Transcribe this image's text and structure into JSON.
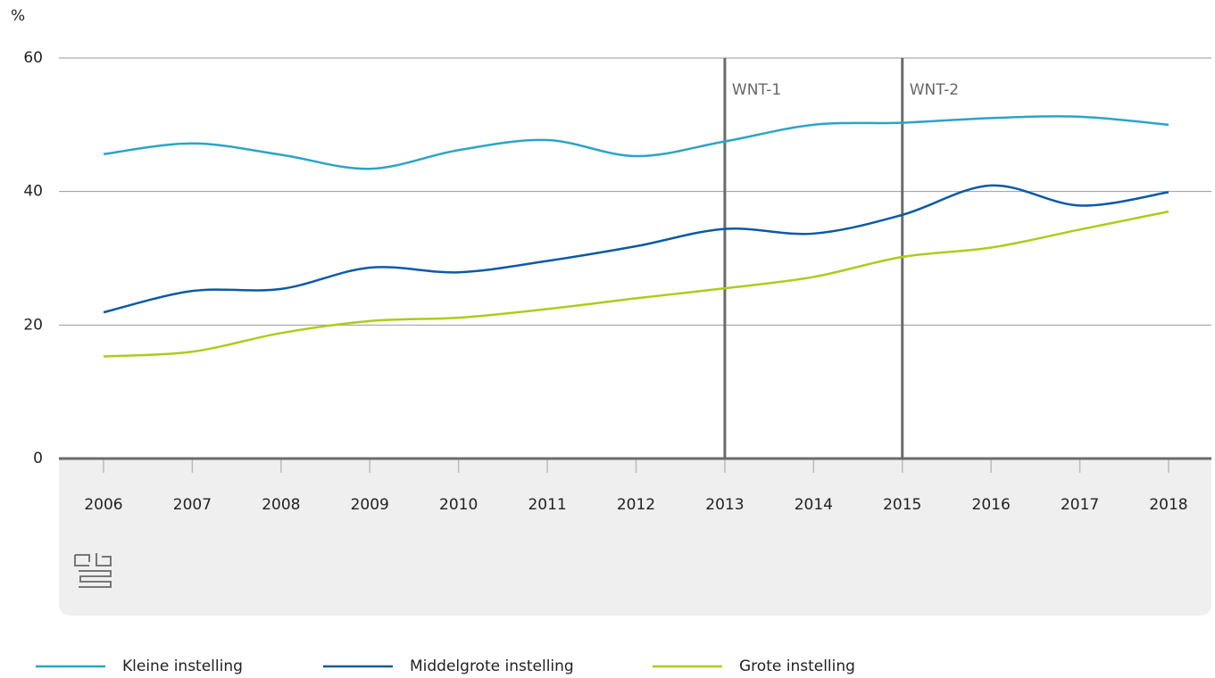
{
  "chart_data": {
    "type": "line",
    "y_label": "%",
    "categories": [
      "2006",
      "2007",
      "2008",
      "2009",
      "2010",
      "2011",
      "2012",
      "2013",
      "2014",
      "2015",
      "2016",
      "2017",
      "2018"
    ],
    "series": [
      {
        "name": "Kleine instelling",
        "color": "#2ba4c8",
        "values": [
          45.6,
          47.2,
          45.5,
          43.4,
          46.2,
          47.7,
          45.3,
          47.5,
          50.0,
          50.3,
          51.0,
          51.2,
          50.0
        ]
      },
      {
        "name": "Middelgrote instelling",
        "color": "#0b5aa6",
        "values": [
          21.9,
          25.1,
          25.4,
          28.6,
          27.9,
          29.6,
          31.8,
          34.4,
          33.7,
          36.5,
          40.9,
          37.9,
          39.9
        ]
      },
      {
        "name": "Grote instelling",
        "color": "#afcb1b",
        "values": [
          15.3,
          16.0,
          18.8,
          20.6,
          21.1,
          22.4,
          24.0,
          25.5,
          27.2,
          30.2,
          31.6,
          34.3,
          37.0
        ]
      }
    ],
    "ylim": [
      0,
      60
    ],
    "yticks": [
      0,
      20,
      40,
      60
    ],
    "grid": true,
    "annotations": [
      {
        "text": "WNT-1",
        "x": "2013"
      },
      {
        "text": "WNT-2",
        "x": "2015"
      }
    ]
  }
}
